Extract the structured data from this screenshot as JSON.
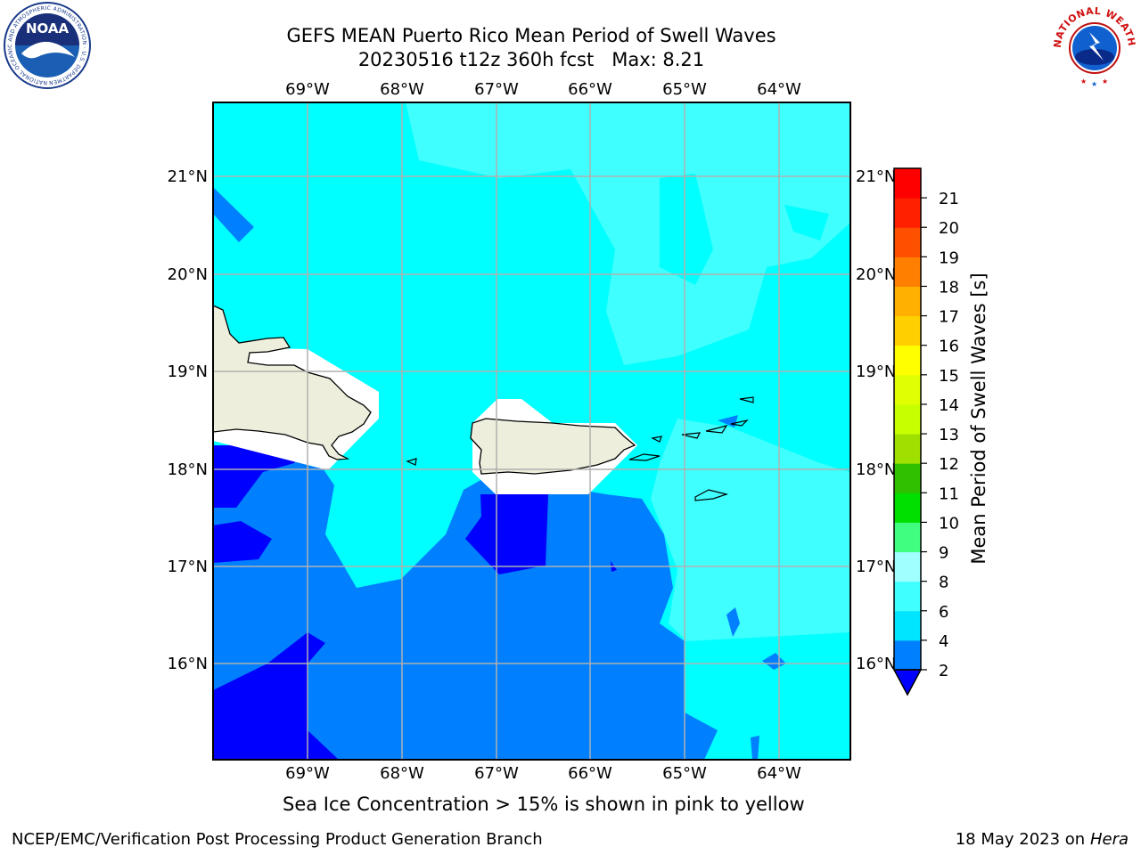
{
  "header": {
    "title_line1": "GEFS MEAN Puerto Rico Mean Period of Swell Waves",
    "title_line2": "20230516 t12z 360h fcst   Max: 8.21"
  },
  "logos": {
    "left": {
      "text": "NOAA",
      "ring_text": "NATIONAL OCEANIC AND ATMOSPHERIC ADMINISTRATION · U.S. DEPARTMENT OF COMMERCE"
    },
    "right": {
      "ring_text": "NATIONAL WEATHER SERVICE"
    }
  },
  "map": {
    "lon_labels": [
      "69°W",
      "68°W",
      "67°W",
      "66°W",
      "65°W",
      "64°W"
    ],
    "lat_labels": [
      "21°N",
      "20°N",
      "19°N",
      "18°N",
      "17°N",
      "16°N"
    ],
    "islands": [
      "Hispaniola",
      "Puerto Rico",
      "Virgin Islands",
      "St. Croix"
    ],
    "colors": {
      "land": "#eeeedd",
      "grid": "#b0b0b0"
    }
  },
  "colorbar": {
    "label": "Mean Period of Swell Waves [s]",
    "extend": "min",
    "ticks": [
      "2",
      "4",
      "6",
      "8",
      "9",
      "10",
      "11",
      "12",
      "13",
      "14",
      "15",
      "16",
      "17",
      "18",
      "19",
      "20",
      "21"
    ],
    "colors": [
      "#0080ff",
      "#00e5ff",
      "#40ffff",
      "#a0ffff",
      "#40ff80",
      "#00e000",
      "#30c000",
      "#a0e000",
      "#c8ff00",
      "#e0ff00",
      "#ffff00",
      "#ffd000",
      "#ffb000",
      "#ff8000",
      "#ff5000",
      "#ff2000",
      "#ff0000"
    ],
    "under_color": "#0000ff"
  },
  "footer": {
    "sea_ice_note": "Sea Ice Concentration > 15% is shown in pink to yellow",
    "credit": "NCEP/EMC/Verification Post Processing Product Generation Branch",
    "date": "18 May 2023 on",
    "machine": "Hera"
  }
}
